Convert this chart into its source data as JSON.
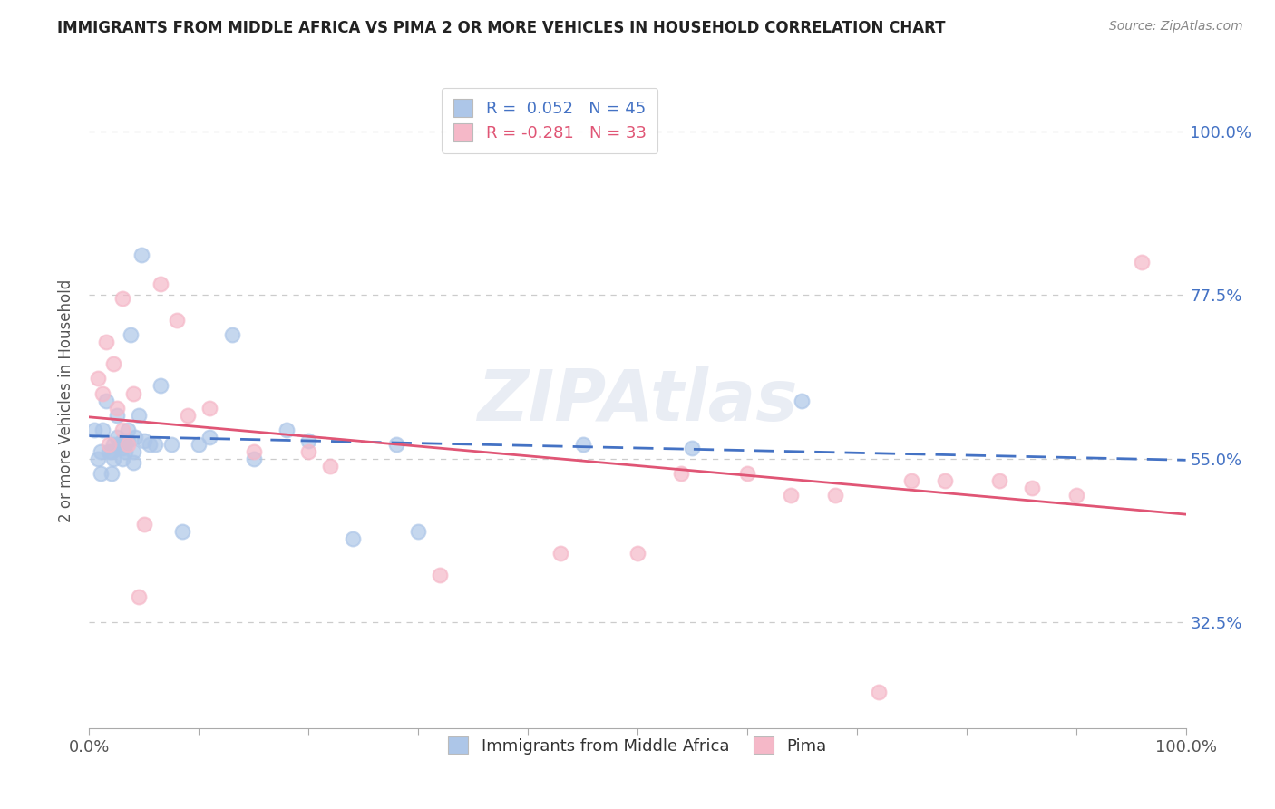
{
  "title": "IMMIGRANTS FROM MIDDLE AFRICA VS PIMA 2 OR MORE VEHICLES IN HOUSEHOLD CORRELATION CHART",
  "source": "Source: ZipAtlas.com",
  "ylabel": "2 or more Vehicles in Household",
  "xlim": [
    0.0,
    1.0
  ],
  "ylim": [
    0.18,
    1.08
  ],
  "yticks": [
    0.325,
    0.55,
    0.775,
    1.0
  ],
  "ytick_labels": [
    "32.5%",
    "55.0%",
    "77.5%",
    "100.0%"
  ],
  "xticks": [
    0.0,
    0.1,
    0.2,
    0.3,
    0.4,
    0.5,
    0.6,
    0.7,
    0.8,
    0.9,
    1.0
  ],
  "xtick_labels": [
    "0.0%",
    "",
    "",
    "",
    "",
    "",
    "",
    "",
    "",
    "",
    "100.0%"
  ],
  "legend_r1": "R =  0.052",
  "legend_n1": "N = 45",
  "legend_r2": "R = -0.281",
  "legend_n2": "N = 33",
  "blue_color": "#adc6e8",
  "pink_color": "#f5b8c8",
  "blue_line_color": "#4472c4",
  "pink_line_color": "#e05575",
  "watermark": "ZIPAtlas",
  "blue_scatter_x": [
    0.005,
    0.008,
    0.01,
    0.01,
    0.012,
    0.015,
    0.018,
    0.02,
    0.02,
    0.022,
    0.022,
    0.025,
    0.025,
    0.028,
    0.03,
    0.03,
    0.03,
    0.032,
    0.033,
    0.035,
    0.035,
    0.038,
    0.04,
    0.04,
    0.042,
    0.045,
    0.048,
    0.05,
    0.055,
    0.06,
    0.065,
    0.075,
    0.085,
    0.1,
    0.11,
    0.13,
    0.15,
    0.18,
    0.2,
    0.24,
    0.28,
    0.3,
    0.45,
    0.55,
    0.65
  ],
  "blue_scatter_y": [
    0.59,
    0.55,
    0.56,
    0.53,
    0.59,
    0.63,
    0.56,
    0.56,
    0.53,
    0.57,
    0.55,
    0.61,
    0.58,
    0.57,
    0.575,
    0.565,
    0.55,
    0.575,
    0.56,
    0.59,
    0.575,
    0.72,
    0.56,
    0.545,
    0.58,
    0.61,
    0.83,
    0.575,
    0.57,
    0.57,
    0.65,
    0.57,
    0.45,
    0.57,
    0.58,
    0.72,
    0.55,
    0.59,
    0.575,
    0.44,
    0.57,
    0.45,
    0.57,
    0.565,
    0.63
  ],
  "pink_scatter_x": [
    0.008,
    0.012,
    0.015,
    0.018,
    0.022,
    0.025,
    0.03,
    0.03,
    0.035,
    0.04,
    0.045,
    0.05,
    0.065,
    0.08,
    0.09,
    0.11,
    0.15,
    0.2,
    0.22,
    0.32,
    0.43,
    0.5,
    0.54,
    0.6,
    0.64,
    0.68,
    0.72,
    0.75,
    0.78,
    0.83,
    0.86,
    0.9,
    0.96
  ],
  "pink_scatter_y": [
    0.66,
    0.64,
    0.71,
    0.57,
    0.68,
    0.62,
    0.59,
    0.77,
    0.57,
    0.64,
    0.36,
    0.46,
    0.79,
    0.74,
    0.61,
    0.62,
    0.56,
    0.56,
    0.54,
    0.39,
    0.42,
    0.42,
    0.53,
    0.53,
    0.5,
    0.5,
    0.23,
    0.52,
    0.52,
    0.52,
    0.51,
    0.5,
    0.82
  ]
}
